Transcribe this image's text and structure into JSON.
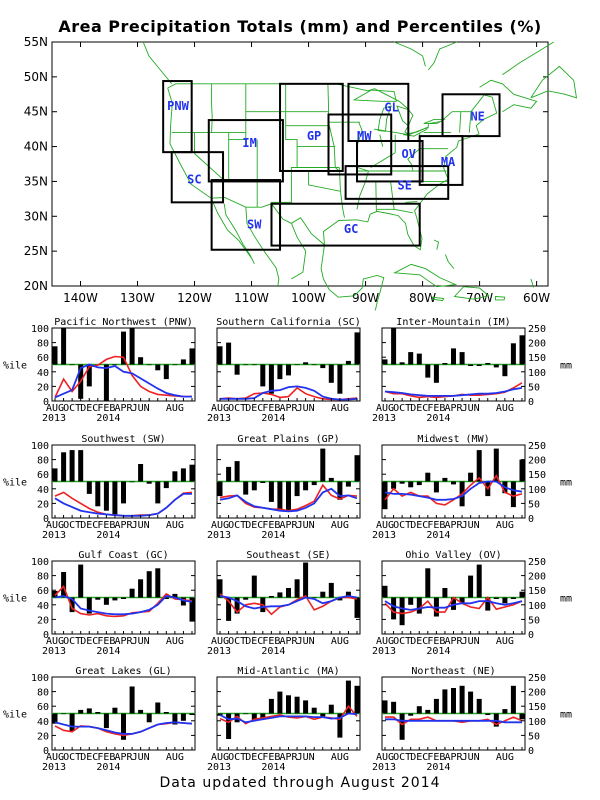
{
  "title": "Area Precipitation Totals (mm) and Percentiles (%)",
  "footer": "Data updated through August 2014",
  "colors": {
    "map_lines": "#22aa22",
    "region_box": "#000000",
    "region_label": "#2233ee",
    "bar": "#000000",
    "red_line": "#ee2222",
    "blue_line": "#2233ee",
    "ref_line": "#22aa22"
  },
  "map": {
    "lat_labels": [
      "55N",
      "50N",
      "45N",
      "40N",
      "35N",
      "30N",
      "25N",
      "20N"
    ],
    "lon_labels": [
      "140W",
      "130W",
      "120W",
      "110W",
      "100W",
      "90W",
      "80W",
      "70W",
      "60W"
    ],
    "regions": [
      "PNW",
      "SC",
      "IM",
      "SW",
      "GP",
      "MW",
      "GL",
      "OV",
      "SE",
      "GC",
      "MA",
      "NE"
    ]
  },
  "small_axes": {
    "left_ticks": [
      "100",
      "80",
      "60",
      "40",
      "20",
      "0"
    ],
    "right_ticks": [
      "250",
      "200",
      "150",
      "100",
      "50",
      "0"
    ],
    "left_unit": "%ile",
    "right_unit": "mm",
    "x_ticks": [
      "AUG",
      "OCT",
      "DEC",
      "FEB",
      "APR",
      "JUN",
      "AUG"
    ],
    "year_start": "2013",
    "year_mid": "2014"
  },
  "chart_data": [
    {
      "type": "bar",
      "title": "Pacific Northwest (PNW)",
      "ylim": [
        0,
        100
      ],
      "y2lim": [
        0,
        250
      ],
      "bars": [
        75,
        100,
        50,
        3,
        20,
        50,
        0,
        50,
        95,
        100,
        60,
        50,
        42,
        30,
        50,
        57,
        72
      ],
      "red": [
        5,
        30,
        13,
        27,
        47,
        49,
        57,
        61,
        60,
        35,
        20,
        13,
        9,
        8,
        7,
        6,
        6
      ],
      "blue": [
        5,
        10,
        15,
        45,
        50,
        46,
        45,
        48,
        40,
        38,
        31,
        24,
        17,
        11,
        8,
        6,
        6
      ]
    },
    {
      "type": "bar",
      "title": "Southern California (SC)",
      "ylim": [
        0,
        100
      ],
      "y2lim": [
        0,
        250
      ],
      "bars": [
        75,
        80,
        36,
        50,
        50,
        20,
        10,
        30,
        35,
        50,
        53,
        50,
        45,
        25,
        10,
        55,
        94
      ],
      "red": [
        3,
        4,
        3,
        4,
        10,
        11,
        9,
        5,
        6,
        18,
        10,
        6,
        3,
        2,
        2,
        3,
        4
      ],
      "blue": [
        3,
        3,
        3,
        3,
        4,
        11,
        14,
        15,
        19,
        20,
        18,
        14,
        6,
        3,
        2,
        2,
        3
      ]
    },
    {
      "type": "bar",
      "title": "Inter-Mountain (IM)",
      "ylim": [
        0,
        100
      ],
      "y2lim": [
        0,
        250
      ],
      "bars": [
        57,
        100,
        53,
        67,
        65,
        32,
        25,
        52,
        72,
        67,
        48,
        48,
        52,
        46,
        34,
        79,
        90
      ],
      "red": [
        13,
        10,
        10,
        7,
        5,
        6,
        5,
        6,
        7,
        9,
        8,
        8,
        9,
        10,
        12,
        18,
        25
      ],
      "blue": [
        13,
        12,
        11,
        9,
        8,
        7,
        7,
        7,
        7,
        8,
        9,
        10,
        10,
        11,
        13,
        16,
        18
      ]
    },
    {
      "type": "bar",
      "title": "Southwest (SW)",
      "ylim": [
        0,
        100
      ],
      "y2lim": [
        0,
        250
      ],
      "bars": [
        68,
        90,
        93,
        93,
        33,
        16,
        10,
        5,
        20,
        49,
        74,
        47,
        20,
        41,
        64,
        68,
        73
      ],
      "red": [
        30,
        35,
        27,
        20,
        13,
        8,
        5,
        4,
        3,
        3,
        4,
        4,
        6,
        14,
        25,
        34,
        35
      ],
      "blue": [
        27,
        20,
        15,
        10,
        8,
        6,
        5,
        4,
        3,
        3,
        3,
        4,
        6,
        14,
        25,
        33,
        33
      ]
    },
    {
      "type": "bar",
      "title": "Great Plains (GP)",
      "ylim": [
        0,
        100
      ],
      "y2lim": [
        0,
        250
      ],
      "bars": [
        30,
        70,
        78,
        32,
        38,
        48,
        22,
        10,
        9,
        30,
        38,
        45,
        95,
        55,
        25,
        43,
        86
      ],
      "red": [
        28,
        30,
        31,
        20,
        15,
        14,
        12,
        12,
        10,
        12,
        17,
        23,
        45,
        31,
        26,
        31,
        30
      ],
      "blue": [
        25,
        27,
        31,
        22,
        16,
        14,
        12,
        10,
        9,
        10,
        14,
        20,
        35,
        40,
        30,
        31,
        27
      ]
    },
    {
      "type": "bar",
      "title": "Midwest (MW)",
      "ylim": [
        0,
        100
      ],
      "y2lim": [
        0,
        250
      ],
      "bars": [
        12,
        40,
        47,
        42,
        45,
        62,
        35,
        55,
        46,
        16,
        62,
        93,
        30,
        95,
        34,
        15,
        80
      ],
      "red": [
        25,
        40,
        30,
        35,
        30,
        30,
        20,
        18,
        25,
        33,
        45,
        55,
        40,
        58,
        35,
        30,
        33
      ],
      "blue": [
        35,
        33,
        33,
        32,
        30,
        28,
        25,
        25,
        26,
        30,
        40,
        48,
        50,
        50,
        42,
        38,
        36
      ]
    },
    {
      "type": "bar",
      "title": "Gulf Coast (GC)",
      "ylim": [
        0,
        100
      ],
      "y2lim": [
        0,
        250
      ],
      "bars": [
        59,
        85,
        30,
        95,
        28,
        47,
        40,
        46,
        48,
        62,
        75,
        86,
        90,
        48,
        55,
        39,
        17
      ],
      "red": [
        53,
        65,
        35,
        28,
        26,
        28,
        25,
        24,
        25,
        29,
        30,
        31,
        42,
        55,
        48,
        47,
        45
      ],
      "blue": [
        50,
        52,
        48,
        35,
        32,
        30,
        28,
        27,
        27,
        28,
        30,
        33,
        40,
        52,
        50,
        46,
        44
      ]
    },
    {
      "type": "bar",
      "title": "Southeast (SE)",
      "ylim": [
        0,
        100
      ],
      "y2lim": [
        0,
        250
      ],
      "bars": [
        75,
        18,
        28,
        47,
        80,
        30,
        52,
        57,
        63,
        75,
        98,
        50,
        58,
        70,
        46,
        58,
        22
      ],
      "red": [
        55,
        45,
        30,
        40,
        42,
        40,
        27,
        37,
        40,
        47,
        52,
        33,
        38,
        45,
        50,
        50,
        48
      ],
      "blue": [
        52,
        50,
        45,
        38,
        35,
        37,
        38,
        38,
        40,
        45,
        50,
        48,
        42,
        45,
        50,
        52,
        50
      ]
    },
    {
      "type": "bar",
      "title": "Ohio Valley (OV)",
      "ylim": [
        0,
        100
      ],
      "y2lim": [
        0,
        250
      ],
      "bars": [
        66,
        20,
        12,
        40,
        28,
        90,
        24,
        63,
        33,
        43,
        80,
        95,
        32,
        48,
        42,
        48,
        58
      ],
      "red": [
        42,
        30,
        28,
        30,
        35,
        45,
        30,
        30,
        50,
        42,
        37,
        35,
        50,
        34,
        37,
        40,
        45
      ],
      "blue": [
        45,
        38,
        35,
        33,
        35,
        37,
        36,
        36,
        40,
        42,
        42,
        45,
        45,
        42,
        40,
        42,
        45
      ]
    },
    {
      "type": "bar",
      "title": "Great Lakes (GL)",
      "ylim": [
        0,
        100
      ],
      "y2lim": [
        0,
        250
      ],
      "bars": [
        36,
        50,
        26,
        55,
        57,
        52,
        30,
        58,
        14,
        87,
        55,
        38,
        65,
        52,
        35,
        40,
        48
      ],
      "red": [
        33,
        27,
        25,
        33,
        32,
        30,
        25,
        22,
        20,
        22,
        25,
        30,
        35,
        36,
        38,
        37,
        36
      ],
      "blue": [
        38,
        35,
        32,
        32,
        32,
        30,
        27,
        24,
        22,
        22,
        25,
        30,
        35,
        37,
        38,
        37,
        36
      ]
    },
    {
      "type": "bar",
      "title": "Mid-Atlantic (MA)",
      "ylim": [
        0,
        100
      ],
      "y2lim": [
        0,
        250
      ],
      "bars": [
        47,
        15,
        38,
        50,
        40,
        42,
        70,
        80,
        75,
        73,
        68,
        58,
        46,
        62,
        17,
        95,
        88
      ],
      "red": [
        43,
        38,
        46,
        36,
        42,
        44,
        46,
        48,
        45,
        44,
        46,
        42,
        45,
        44,
        42,
        60,
        46
      ],
      "blue": [
        48,
        42,
        43,
        38,
        40,
        42,
        44,
        46,
        46,
        46,
        46,
        45,
        45,
        43,
        44,
        50,
        49
      ]
    },
    {
      "type": "bar",
      "title": "Northeast (NE)",
      "ylim": [
        0,
        100
      ],
      "y2lim": [
        0,
        250
      ],
      "bars": [
        68,
        66,
        14,
        47,
        60,
        55,
        70,
        83,
        85,
        88,
        80,
        70,
        48,
        32,
        56,
        88,
        42
      ],
      "red": [
        45,
        45,
        35,
        42,
        42,
        45,
        40,
        40,
        40,
        38,
        40,
        40,
        42,
        35,
        40,
        45,
        40
      ],
      "blue": [
        42,
        42,
        40,
        40,
        40,
        40,
        40,
        40,
        40,
        40,
        40,
        40,
        40,
        40,
        38,
        38,
        38
      ]
    }
  ]
}
